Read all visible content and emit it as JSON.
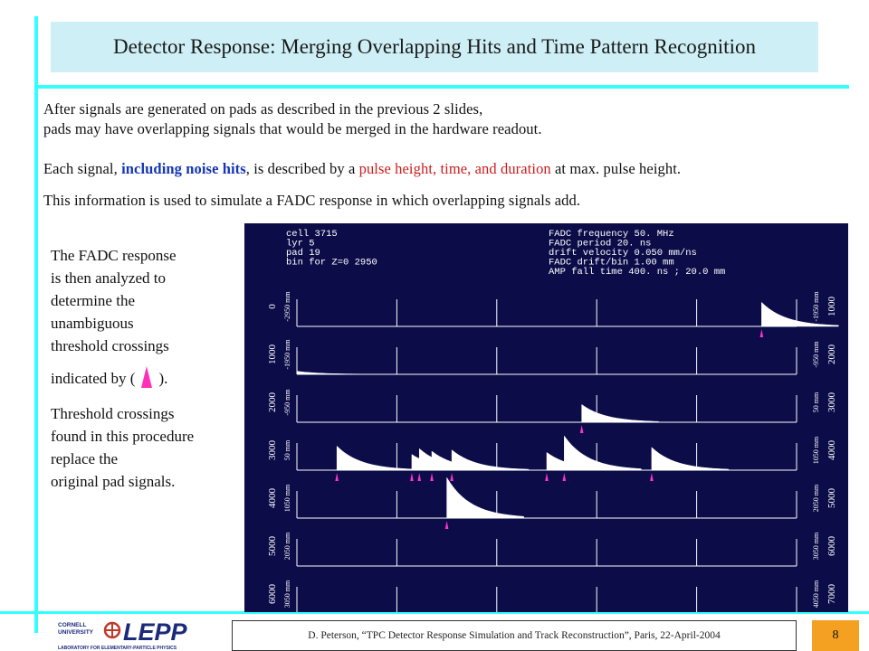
{
  "slide": {
    "title": "Detector Response: Merging Overlapping Hits and Time Pattern Recognition",
    "para1_line1": "After signals are generated on pads as described in the previous 2 slides,",
    "para1_line2": "pads may have overlapping signals that would be merged in the hardware readout.",
    "para2_a": "Each signal, ",
    "para2_b": "including noise hits",
    "para2_c": ", is described by a ",
    "para2_d": "pulse height, time, and duration",
    "para2_e": " at max. pulse height.",
    "para3": "This information is used to simulate a FADC response in which overlapping signals add.",
    "sidebar": [
      "The FADC response",
      "is then analyzed to",
      "determine the",
      "unambiguous",
      "threshold crossings"
    ],
    "indicated_prefix": "indicated by (",
    "indicated_suffix": ").",
    "sidebar2": [
      "Threshold crossings",
      "found in this procedure",
      "replace the",
      "original pad signals."
    ],
    "footer": "D. Peterson, “TPC Detector Response Simulation and Track Reconstruction”, Paris, 22-April-2004",
    "page_number": "8",
    "logo_cornell_line1": "CORNELL",
    "logo_cornell_line2": "UNIVERSITY",
    "logo_lepp": "LEPP",
    "logo_subtitle": "LABORATORY FOR ELEMENTARY-PARTICLE PHYSICS"
  },
  "fadc": {
    "info_left": [
      "cell   3715",
      "lyr      5",
      "pad     19",
      "bin for Z=0    2950"
    ],
    "info_right": [
      "FADC frequency   50. MHz",
      "FADC period       20. ns",
      "drift velocity 0.050 mm/ns",
      "FADC drift/bin   1.00 mm",
      "AMP fall time   400. ns ;  20.0 mm"
    ],
    "rows": [
      {
        "left_bin": "0",
        "left_mm": "-2950 mm",
        "right_bin": "1000",
        "right_mm": "-1950 mm"
      },
      {
        "left_bin": "1000",
        "left_mm": "-1950 mm",
        "right_bin": "2000",
        "right_mm": "-950 mm"
      },
      {
        "left_bin": "2000",
        "left_mm": "-950 mm",
        "right_bin": "3000",
        "right_mm": "50 mm"
      },
      {
        "left_bin": "3000",
        "left_mm": "50 mm",
        "right_bin": "4000",
        "right_mm": "1050 mm"
      },
      {
        "left_bin": "4000",
        "left_mm": "1050 mm",
        "right_bin": "5000",
        "right_mm": "2050 mm"
      },
      {
        "left_bin": "5000",
        "left_mm": "2050 mm",
        "right_bin": "6000",
        "right_mm": "3050 mm"
      },
      {
        "left_bin": "6000",
        "left_mm": "3050 mm",
        "right_bin": "7000",
        "right_mm": "4050 mm"
      }
    ],
    "pulses": [
      {
        "row": 0,
        "start": 0.93,
        "height": 0.95,
        "marker": true
      },
      {
        "row": 1,
        "start": 0.0,
        "height": 0.12,
        "marker": false
      },
      {
        "row": 2,
        "start": 0.57,
        "height": 0.7,
        "marker": true
      },
      {
        "row": 3,
        "start": 0.08,
        "height": 0.95,
        "marker": true
      },
      {
        "row": 3,
        "start": 0.23,
        "height": 0.62,
        "marker": true
      },
      {
        "row": 3,
        "start": 0.245,
        "height": 0.85,
        "marker": true
      },
      {
        "row": 3,
        "start": 0.27,
        "height": 0.75,
        "marker": true
      },
      {
        "row": 3,
        "start": 0.31,
        "height": 0.8,
        "marker": true
      },
      {
        "row": 3,
        "start": 0.5,
        "height": 0.7,
        "marker": true
      },
      {
        "row": 3,
        "start": 0.535,
        "height": 1.35,
        "marker": true
      },
      {
        "row": 3,
        "start": 0.71,
        "height": 0.9,
        "marker": true
      },
      {
        "row": 4,
        "start": 0.3,
        "height": 1.6,
        "marker": true
      }
    ],
    "colors": {
      "background": "#0b0c48",
      "trace": "#ffffff",
      "marker": "#ff33cc",
      "text": "#ffffff"
    }
  }
}
